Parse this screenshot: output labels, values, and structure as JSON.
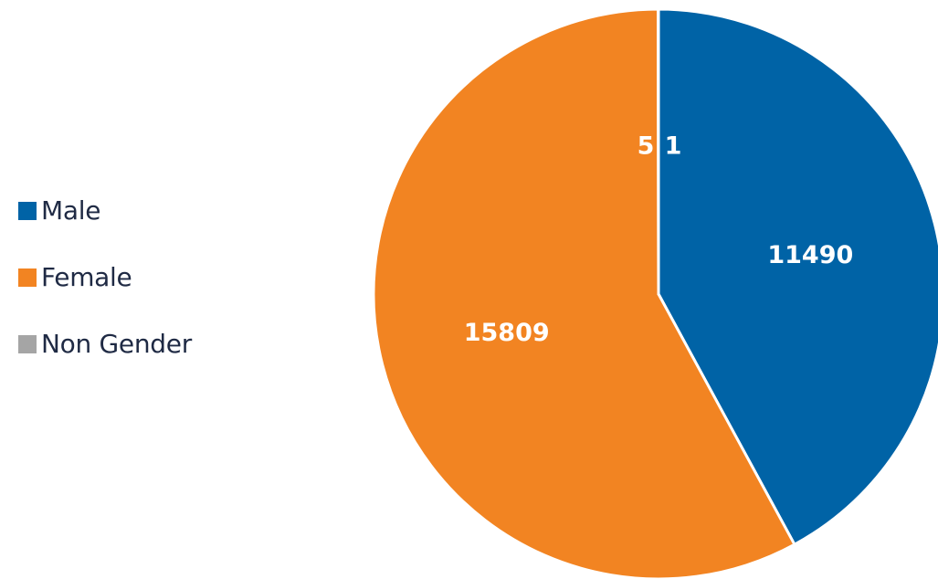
{
  "chart_data": {
    "type": "pie",
    "title": "",
    "legend_position": "left",
    "slices": [
      {
        "name": "Male",
        "value": 11490,
        "label": "11490",
        "color": "#0063a6"
      },
      {
        "name": "Female",
        "value": 15809,
        "label": "15809",
        "color": "#f28422"
      },
      {
        "name": "Non Gender",
        "value": 5,
        "label": "5",
        "color": "#a5a5a5"
      },
      {
        "name": "",
        "value": 1,
        "label": "1",
        "color": "#0063a6"
      }
    ]
  },
  "legend": {
    "items": [
      {
        "label": "Male",
        "color": "#0063a6"
      },
      {
        "label": "Female",
        "color": "#f28422"
      },
      {
        "label": "Non Gender",
        "color": "#a5a5a5"
      }
    ]
  }
}
